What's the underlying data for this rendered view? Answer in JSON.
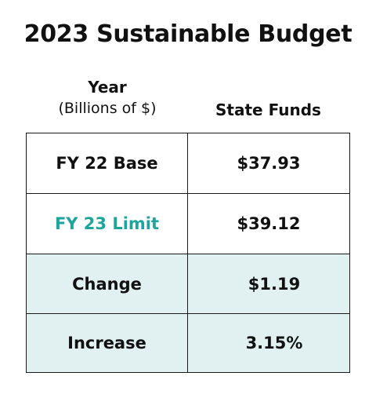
{
  "title": "2023 Sustainable Budget",
  "columns": {
    "year_label": "Year",
    "year_sub": "(Billions of $)",
    "funds_label": "State Funds"
  },
  "colors": {
    "highlight_text": "#1ba59c",
    "shaded_row_bg": "#e1f1f1",
    "border": "#1a1a1a"
  },
  "chart_data": {
    "type": "table",
    "title": "2023 Sustainable Budget",
    "columns": [
      "Year (Billions of $)",
      "State Funds"
    ],
    "rows": [
      {
        "label": "FY 22 Base",
        "value": "$37.93",
        "highlight": false,
        "shaded": false
      },
      {
        "label": "FY 23 Limit",
        "value": "$39.12",
        "highlight": true,
        "shaded": false
      },
      {
        "label": "Change",
        "value": "$1.19",
        "highlight": false,
        "shaded": true
      },
      {
        "label": "Increase",
        "value": "3.15%",
        "highlight": false,
        "shaded": true
      }
    ]
  }
}
